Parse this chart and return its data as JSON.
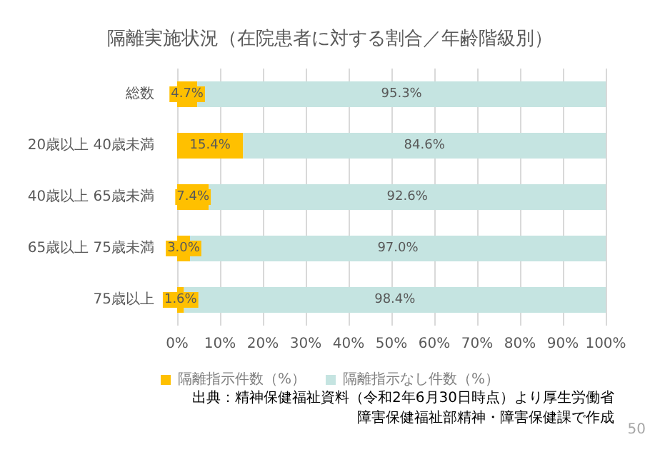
{
  "chart_data": {
    "type": "bar",
    "orientation": "horizontal",
    "stacked": true,
    "title": "隔離実施状況（在院患者に対する割合／年齢階級別）",
    "categories": [
      "総数",
      "20歳以上 40歳未満",
      "40歳以上 65歳未満",
      "65歳以上 75歳未満",
      "75歳以上"
    ],
    "series": [
      {
        "name": "隔離指示件数（%）",
        "color": "#ffc000",
        "values": [
          4.7,
          15.4,
          7.4,
          3.0,
          1.6
        ],
        "value_labels": [
          "4.7%",
          "15.4%",
          "7.4%",
          "3.0%",
          "1.6%"
        ]
      },
      {
        "name": "隔離指示なし件数（%）",
        "color": "#c5e4e1",
        "values": [
          95.3,
          84.6,
          92.6,
          97.0,
          98.4
        ],
        "value_labels": [
          "95.3%",
          "84.6%",
          "92.6%",
          "97.0%",
          "98.4%"
        ]
      }
    ],
    "xlim": [
      0,
      100
    ],
    "xticks": [
      {
        "value": 0,
        "label": "0%"
      },
      {
        "value": 10,
        "label": "10%"
      },
      {
        "value": 20,
        "label": "20%"
      },
      {
        "value": 30,
        "label": "30%"
      },
      {
        "value": 40,
        "label": "40%"
      },
      {
        "value": 50,
        "label": "50%"
      },
      {
        "value": 60,
        "label": "60%"
      },
      {
        "value": 70,
        "label": "70%"
      },
      {
        "value": 80,
        "label": "80%"
      },
      {
        "value": 90,
        "label": "90%"
      },
      {
        "value": 100,
        "label": "100%"
      }
    ],
    "grid": "x",
    "legend": "bottom",
    "annotations": [
      "出典：精神保健福祉資料（令和2年6月30日時点）より厚生労働省",
      "障害保健福祉部精神・障害保健課で作成",
      "50"
    ]
  }
}
